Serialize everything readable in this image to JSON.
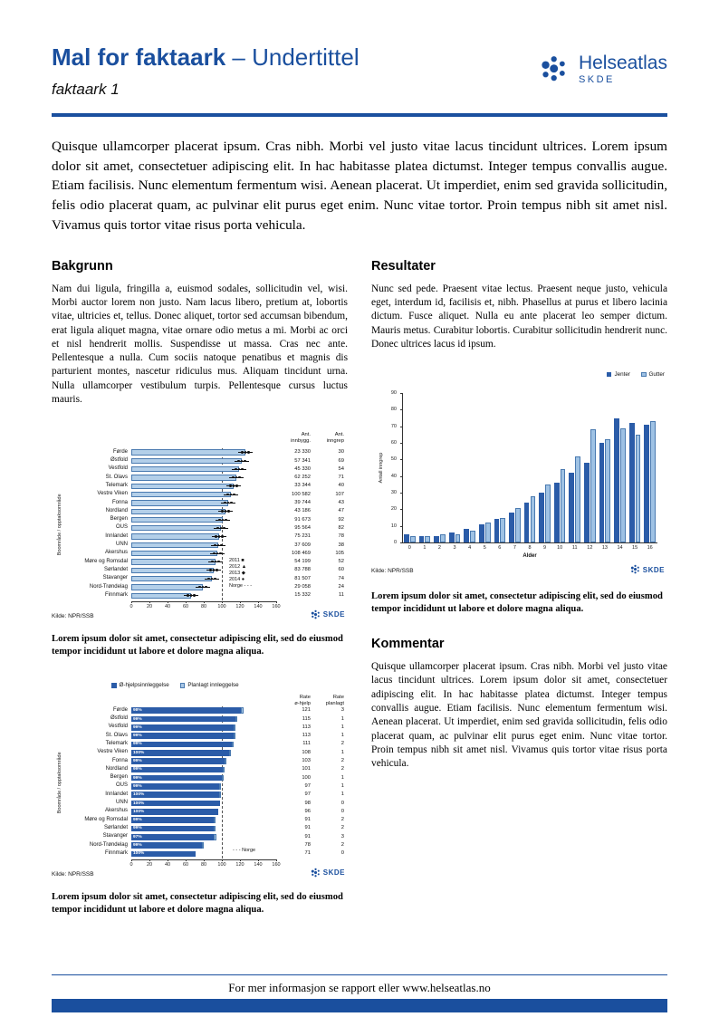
{
  "header": {
    "title_bold": "Mal for faktaark",
    "title_rest": "– Undertittel",
    "subtitle": "faktaark 1",
    "logo_name": "Helseatlas",
    "logo_sub": "SKDE",
    "brand_blue": "#1a4f9e"
  },
  "intro": "Quisque ullamcorper placerat ipsum. Cras nibh. Morbi vel justo vitae lacus tincidunt ultrices. Lorem ipsum dolor sit amet, consectetuer adipiscing elit. In hac habitasse platea dictumst. Integer tempus convallis augue. Etiam facilisis. Nunc elementum fermentum wisi. Aenean placerat. Ut imperdiet, enim sed gravida sollicitudin, felis odio placerat quam, ac pulvinar elit purus eget enim. Nunc vitae tortor. Proin tempus nibh sit amet nisl. Vivamus quis tortor vitae risus porta vehicula.",
  "sections": {
    "bakgrunn": {
      "heading": "Bakgrunn",
      "body": "Nam dui ligula, fringilla a, euismod sodales, sollicitudin vel, wisi. Morbi auctor lorem non justo. Nam lacus libero, pretium at, lobortis vitae, ultricies et, tellus. Donec aliquet, tortor sed accumsan bibendum, erat ligula aliquet magna, vitae ornare odio metus a mi. Morbi ac orci et nisl hendrerit mollis. Suspendisse ut massa. Cras nec ante. Pellentesque a nulla. Cum sociis natoque penatibus et magnis dis parturient montes, nascetur ridiculus mus. Aliquam tincidunt urna. Nulla ullamcorper vestibulum turpis. Pellentesque cursus luctus mauris."
    },
    "resultater": {
      "heading": "Resultater",
      "body": "Nunc sed pede. Praesent vitae lectus. Praesent neque justo, vehicula eget, interdum id, facilisis et, nibh. Phasellus at purus et libero lacinia dictum. Fusce aliquet. Nulla eu ante placerat leo semper dictum. Mauris metus. Curabitur lobortis. Curabitur sollicitudin hendrerit nunc. Donec ultrices lacus id ipsum."
    },
    "kommentar": {
      "heading": "Kommentar",
      "body": "Quisque ullamcorper placerat ipsum. Cras nibh. Morbi vel justo vitae lacus tincidunt ultrices. Lorem ipsum dolor sit amet, consectetuer adipiscing elit. In hac habitasse platea dictumst. Integer tempus convallis augue. Etiam facilisis. Nunc elementum fermentum wisi. Aenean placerat. Ut imperdiet, enim sed gravida sollicitudin, felis odio placerat quam, ac pulvinar elit purus eget enim. Nunc vitae tortor. Proin tempus nibh sit amet nisl. Vivamus quis tortor vitae risus porta vehicula."
    }
  },
  "captions": {
    "c1": "Lorem ipsum dolor sit amet, consectetur adipiscing elit, sed do eiusmod tempor incididunt ut labore et dolore magna aliqua.",
    "c2": "Lorem ipsum dolor sit amet, consectetur adipiscing elit, sed do eiusmod tempor incididunt ut labore et dolore magna aliqua.",
    "c3": "Lorem ipsum dolor sit amet, consectetur adipiscing elit, sed do eiusmod tempor incididunt ut labore et dolore magna aliqua."
  },
  "footer": {
    "text": "For mer informasjon se rapport eller www.helseatlas.no"
  },
  "chart_data": [
    {
      "type": "bar",
      "orientation": "horizontal",
      "ylabel": "Boområde / opptaksområde",
      "xlim": [
        0,
        160
      ],
      "x_ticks": [
        0,
        20,
        40,
        60,
        80,
        100,
        120,
        140,
        160
      ],
      "reference_line": {
        "label": "Norge",
        "value": 100,
        "style": "dashed"
      },
      "legend_years": [
        "2011",
        "2012",
        "2013",
        "2014"
      ],
      "col_headers": [
        "Ant. innbygg.",
        "Ant. inngrep"
      ],
      "source": "Kilde: NPR/SSB",
      "logo": "SKDE",
      "regions": [
        {
          "name": "Førde",
          "rate": 126,
          "innbygg": "23 330",
          "inngrep": "30"
        },
        {
          "name": "Østfold",
          "rate": 122,
          "innbygg": "57 341",
          "inngrep": "69"
        },
        {
          "name": "Vestfold",
          "rate": 119,
          "innbygg": "45 330",
          "inngrep": "54"
        },
        {
          "name": "St. Olavs",
          "rate": 116,
          "innbygg": "62 252",
          "inngrep": "71"
        },
        {
          "name": "Telemark",
          "rate": 113,
          "innbygg": "33 344",
          "inngrep": "40"
        },
        {
          "name": "Vestre Viken",
          "rate": 110,
          "innbygg": "100 582",
          "inngrep": "107"
        },
        {
          "name": "Fonna",
          "rate": 107,
          "innbygg": "39 744",
          "inngrep": "43"
        },
        {
          "name": "Nordland",
          "rate": 104,
          "innbygg": "43 186",
          "inngrep": "47"
        },
        {
          "name": "Bergen",
          "rate": 101,
          "innbygg": "91 673",
          "inngrep": "92"
        },
        {
          "name": "OUS",
          "rate": 99,
          "innbygg": "95 564",
          "inngrep": "82"
        },
        {
          "name": "Innlandet",
          "rate": 97,
          "innbygg": "75 231",
          "inngrep": "78"
        },
        {
          "name": "UNN",
          "rate": 96,
          "innbygg": "37 609",
          "inngrep": "38"
        },
        {
          "name": "Akershus",
          "rate": 95,
          "innbygg": "108 469",
          "inngrep": "105"
        },
        {
          "name": "Møre og Romsdal",
          "rate": 93,
          "innbygg": "54 199",
          "inngrep": "52"
        },
        {
          "name": "Sørlandet",
          "rate": 91,
          "innbygg": "83 788",
          "inngrep": "60"
        },
        {
          "name": "Stavanger",
          "rate": 89,
          "innbygg": "81 507",
          "inngrep": "74"
        },
        {
          "name": "Nord-Trøndelag",
          "rate": 79,
          "innbygg": "29 058",
          "inngrep": "24"
        },
        {
          "name": "Finnmark",
          "rate": 66,
          "innbygg": "15 332",
          "inngrep": "11"
        }
      ]
    },
    {
      "type": "bar",
      "orientation": "horizontal",
      "ylabel": "Boområde / opptaksområde",
      "xlim": [
        0,
        160
      ],
      "x_ticks": [
        0,
        20,
        40,
        60,
        80,
        100,
        120,
        140,
        160
      ],
      "reference_line": {
        "label": "Norge",
        "value": 100,
        "style": "dashed"
      },
      "series": [
        {
          "name": "Ø-hjelpsinnleggelse",
          "color": "#2b5ca8"
        },
        {
          "name": "Planlagt innleggelse",
          "color": "#a9c7e5"
        }
      ],
      "col_headers": [
        "Rate ø-hjelp",
        "Rate planlagt"
      ],
      "source": "Kilde: NPR/SSB",
      "logo": "SKDE",
      "regions": [
        {
          "name": "Førde",
          "pct": "98%",
          "rate_ohjelp": 121,
          "rate_planlagt": 3
        },
        {
          "name": "Østfold",
          "pct": "99%",
          "rate_ohjelp": 115,
          "rate_planlagt": 1
        },
        {
          "name": "Vestfold",
          "pct": "99%",
          "rate_ohjelp": 113,
          "rate_planlagt": 1
        },
        {
          "name": "St. Olavs",
          "pct": "99%",
          "rate_ohjelp": 113,
          "rate_planlagt": 1
        },
        {
          "name": "Telemark",
          "pct": "99%",
          "rate_ohjelp": 111,
          "rate_planlagt": 2
        },
        {
          "name": "Vestre Viken",
          "pct": "100%",
          "rate_ohjelp": 108,
          "rate_planlagt": 1
        },
        {
          "name": "Fonna",
          "pct": "99%",
          "rate_ohjelp": 103,
          "rate_planlagt": 2
        },
        {
          "name": "Nordland",
          "pct": "99%",
          "rate_ohjelp": 101,
          "rate_planlagt": 2
        },
        {
          "name": "Bergen",
          "pct": "99%",
          "rate_ohjelp": 100,
          "rate_planlagt": 1
        },
        {
          "name": "OUS",
          "pct": "99%",
          "rate_ohjelp": 97,
          "rate_planlagt": 1
        },
        {
          "name": "Innlandet",
          "pct": "100%",
          "rate_ohjelp": 97,
          "rate_planlagt": 1
        },
        {
          "name": "UNN",
          "pct": "100%",
          "rate_ohjelp": 98,
          "rate_planlagt": 0
        },
        {
          "name": "Akershus",
          "pct": "100%",
          "rate_ohjelp": 96,
          "rate_planlagt": 0
        },
        {
          "name": "Møre og Romsdal",
          "pct": "99%",
          "rate_ohjelp": 91,
          "rate_planlagt": 2
        },
        {
          "name": "Sørlandet",
          "pct": "99%",
          "rate_ohjelp": 91,
          "rate_planlagt": 2
        },
        {
          "name": "Stavanger",
          "pct": "97%",
          "rate_ohjelp": 91,
          "rate_planlagt": 3
        },
        {
          "name": "Nord-Trøndelag",
          "pct": "99%",
          "rate_ohjelp": 78,
          "rate_planlagt": 2
        },
        {
          "name": "Finnmark",
          "pct": "100%",
          "rate_ohjelp": 71,
          "rate_planlagt": 0
        }
      ]
    },
    {
      "type": "bar",
      "orientation": "vertical",
      "categories": [
        0,
        1,
        2,
        3,
        4,
        5,
        6,
        7,
        8,
        9,
        10,
        11,
        12,
        13,
        14,
        15,
        16
      ],
      "series": [
        {
          "name": "Jenter",
          "color": "#2b5ca8",
          "values": [
            5,
            4,
            4,
            6,
            8,
            11,
            14,
            18,
            24,
            30,
            36,
            42,
            48,
            60,
            75,
            72,
            71
          ]
        },
        {
          "name": "Gutter",
          "color": "#9fc2e4",
          "values": [
            4,
            4,
            5,
            5,
            7,
            12,
            15,
            21,
            28,
            35,
            44,
            52,
            68,
            62,
            69,
            65,
            73
          ]
        }
      ],
      "xlabel": "Alder",
      "ylabel": "Antall inngrep",
      "ylim": [
        0,
        90
      ],
      "y_ticks": [
        0,
        10,
        20,
        30,
        40,
        50,
        60,
        70,
        80,
        90
      ],
      "legend_position": "top-right",
      "grid": false,
      "source": "Kilde: NPR/SSB",
      "logo": "SKDE"
    }
  ]
}
